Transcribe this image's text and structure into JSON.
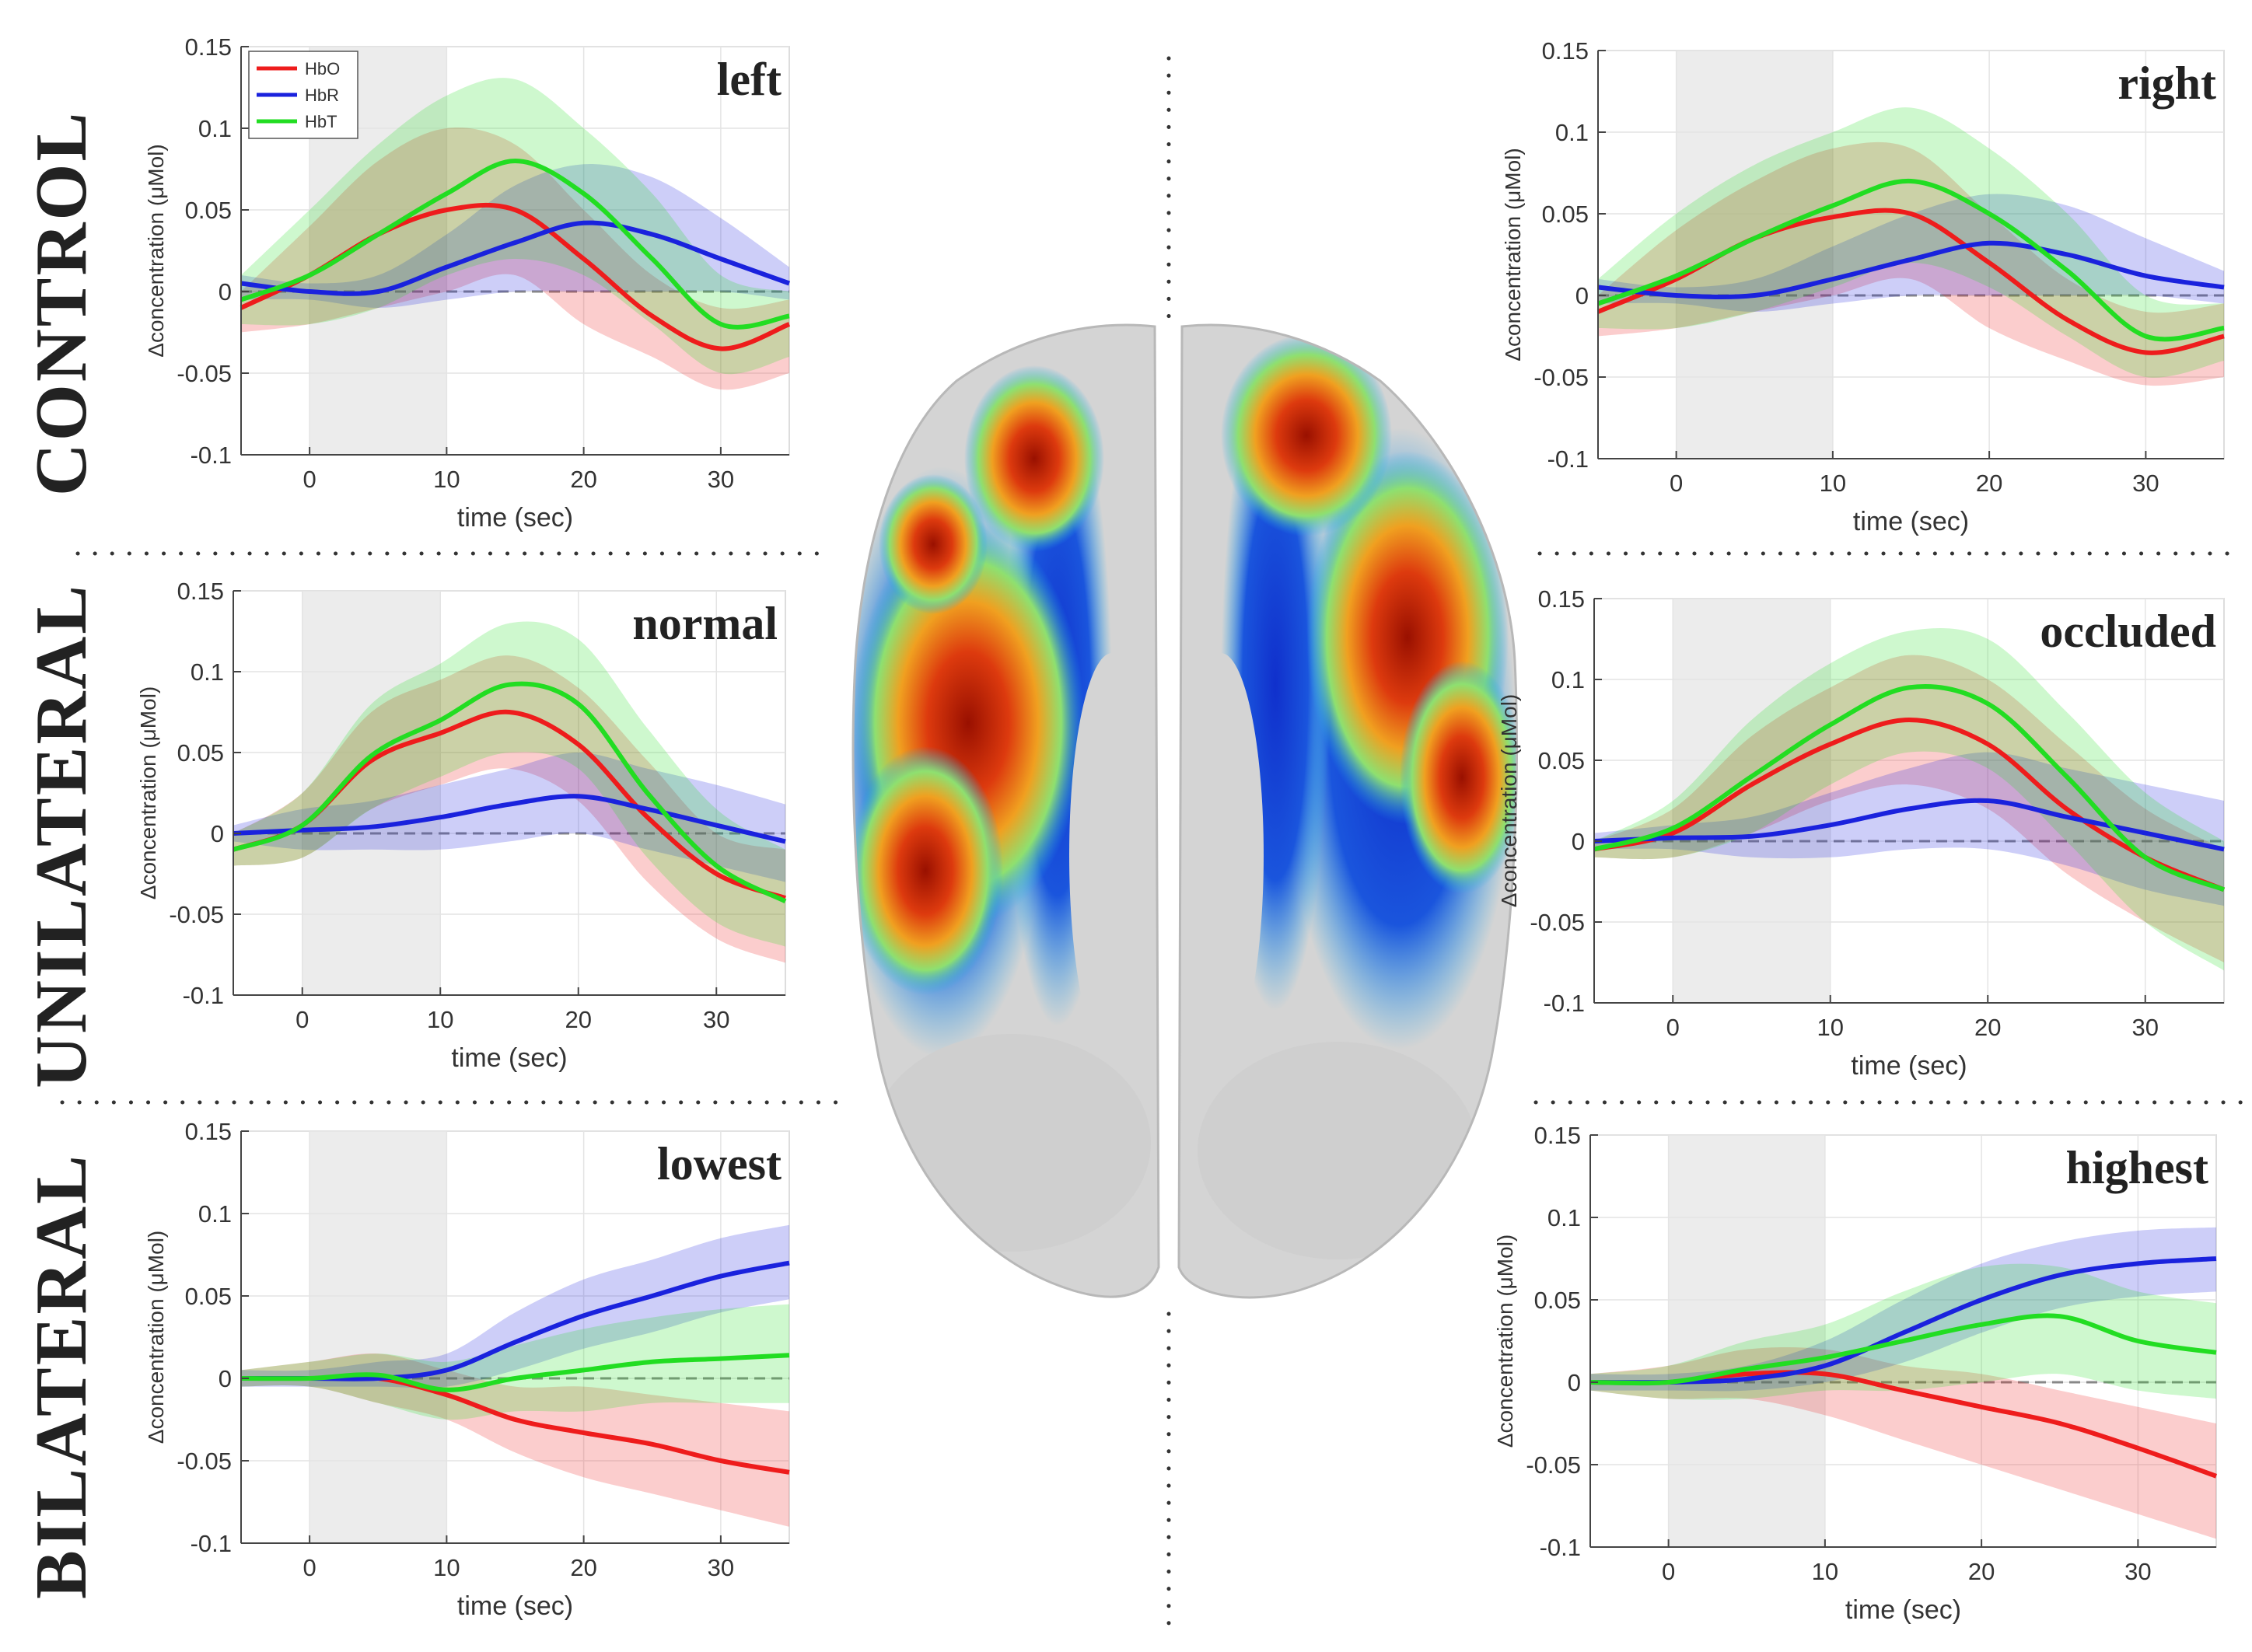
{
  "figure": {
    "row_labels": [
      "CONTROL",
      "UNILATERAL",
      "BILATERAL"
    ],
    "colors": {
      "HbO": "#ee1c1c",
      "HbR": "#1a22dd",
      "HbT": "#22dd22",
      "stim_shade": "#ececec",
      "zero_line": "#888888"
    },
    "brain": {
      "description_icon": "brain-activation-map-icon",
      "colormap": [
        "#1133cc",
        "#22aaee",
        "#66ee88",
        "#eedd22",
        "#ee5511",
        "#aa1100"
      ]
    }
  },
  "chart_data": [
    {
      "type": "line",
      "title": "left",
      "row": "CONTROL",
      "xlabel": "time (sec)",
      "ylabel": "Δconcentration (μMol)",
      "xlim": [
        -5,
        35
      ],
      "ylim": [
        -0.1,
        0.15
      ],
      "xticks": [
        0,
        10,
        20,
        30
      ],
      "yticks": [
        -0.1,
        -0.05,
        0,
        0.05,
        0.1,
        0.15
      ],
      "stim_window": [
        0,
        10
      ],
      "legend": [
        "HbO",
        "HbR",
        "HbT"
      ],
      "legend_position": "top-left",
      "x": [
        -5,
        0,
        5,
        10,
        15,
        20,
        25,
        30,
        35
      ],
      "series": [
        {
          "name": "HbO",
          "values": [
            -0.01,
            0.01,
            0.035,
            0.05,
            0.05,
            0.02,
            -0.015,
            -0.035,
            -0.02
          ],
          "upper": [
            0.0,
            0.04,
            0.08,
            0.1,
            0.09,
            0.05,
            0.01,
            -0.01,
            -0.005
          ],
          "lower": [
            -0.025,
            -0.02,
            -0.01,
            0.0,
            0.01,
            -0.02,
            -0.04,
            -0.06,
            -0.05
          ]
        },
        {
          "name": "HbR",
          "values": [
            0.005,
            0.0,
            0.0,
            0.015,
            0.03,
            0.042,
            0.035,
            0.02,
            0.005
          ],
          "upper": [
            0.01,
            0.005,
            0.01,
            0.035,
            0.065,
            0.078,
            0.07,
            0.045,
            0.015
          ],
          "lower": [
            -0.005,
            -0.005,
            -0.01,
            -0.005,
            0.0,
            0.0,
            0.0,
            0.0,
            -0.005
          ]
        },
        {
          "name": "HbT",
          "values": [
            -0.005,
            0.01,
            0.035,
            0.06,
            0.08,
            0.06,
            0.02,
            -0.02,
            -0.015
          ],
          "upper": [
            0.01,
            0.05,
            0.09,
            0.12,
            0.13,
            0.1,
            0.06,
            0.01,
            0.0
          ],
          "lower": [
            -0.02,
            -0.02,
            -0.01,
            0.01,
            0.02,
            0.01,
            -0.02,
            -0.05,
            -0.04
          ]
        }
      ]
    },
    {
      "type": "line",
      "title": "right",
      "row": "CONTROL",
      "xlabel": "time (sec)",
      "ylabel": "Δconcentration (μMol)",
      "xlim": [
        -5,
        35
      ],
      "ylim": [
        -0.1,
        0.15
      ],
      "xticks": [
        0,
        10,
        20,
        30
      ],
      "yticks": [
        -0.1,
        -0.05,
        0,
        0.05,
        0.1,
        0.15
      ],
      "stim_window": [
        0,
        10
      ],
      "legend": [],
      "legend_position": "none",
      "x": [
        -5,
        0,
        5,
        10,
        15,
        20,
        25,
        30,
        35
      ],
      "series": [
        {
          "name": "HbO",
          "values": [
            -0.01,
            0.01,
            0.035,
            0.048,
            0.05,
            0.02,
            -0.015,
            -0.035,
            -0.025
          ],
          "upper": [
            0.0,
            0.04,
            0.07,
            0.09,
            0.09,
            0.05,
            0.01,
            -0.01,
            -0.005
          ],
          "lower": [
            -0.025,
            -0.02,
            -0.01,
            0.0,
            0.01,
            -0.02,
            -0.04,
            -0.055,
            -0.05
          ]
        },
        {
          "name": "HbR",
          "values": [
            0.005,
            0.0,
            0.0,
            0.01,
            0.022,
            0.032,
            0.025,
            0.012,
            0.005
          ],
          "upper": [
            0.01,
            0.005,
            0.01,
            0.03,
            0.05,
            0.062,
            0.055,
            0.035,
            0.015
          ],
          "lower": [
            -0.005,
            -0.005,
            -0.01,
            -0.005,
            0.0,
            0.0,
            0.0,
            0.0,
            -0.005
          ]
        },
        {
          "name": "HbT",
          "values": [
            -0.005,
            0.012,
            0.035,
            0.055,
            0.07,
            0.05,
            0.015,
            -0.025,
            -0.02
          ],
          "upper": [
            0.01,
            0.05,
            0.08,
            0.1,
            0.115,
            0.09,
            0.05,
            0.0,
            -0.005
          ],
          "lower": [
            -0.02,
            -0.02,
            -0.01,
            0.005,
            0.02,
            0.005,
            -0.025,
            -0.05,
            -0.04
          ]
        }
      ]
    },
    {
      "type": "line",
      "title": "normal",
      "row": "UNILATERAL",
      "xlabel": "time (sec)",
      "ylabel": "Δconcentration (μMol)",
      "xlim": [
        -5,
        35
      ],
      "ylim": [
        -0.1,
        0.15
      ],
      "xticks": [
        0,
        10,
        20,
        30
      ],
      "yticks": [
        -0.1,
        -0.05,
        0,
        0.05,
        0.1,
        0.15
      ],
      "stim_window": [
        0,
        10
      ],
      "legend": [],
      "legend_position": "none",
      "x": [
        -5,
        0,
        5,
        10,
        15,
        20,
        25,
        30,
        35
      ],
      "series": [
        {
          "name": "HbO",
          "values": [
            -0.01,
            0.005,
            0.045,
            0.062,
            0.075,
            0.055,
            0.01,
            -0.025,
            -0.04
          ],
          "upper": [
            0.0,
            0.025,
            0.075,
            0.095,
            0.11,
            0.09,
            0.045,
            0.0,
            -0.01
          ],
          "lower": [
            -0.02,
            -0.015,
            0.015,
            0.03,
            0.04,
            0.02,
            -0.03,
            -0.065,
            -0.08
          ]
        },
        {
          "name": "HbR",
          "values": [
            0.0,
            0.002,
            0.004,
            0.01,
            0.018,
            0.023,
            0.015,
            0.005,
            -0.005
          ],
          "upper": [
            0.005,
            0.015,
            0.02,
            0.03,
            0.04,
            0.05,
            0.04,
            0.03,
            0.018
          ],
          "lower": [
            -0.005,
            -0.01,
            -0.01,
            -0.01,
            -0.005,
            0.0,
            -0.01,
            -0.02,
            -0.03
          ]
        },
        {
          "name": "HbT",
          "values": [
            -0.01,
            0.005,
            0.048,
            0.07,
            0.092,
            0.08,
            0.025,
            -0.02,
            -0.042
          ],
          "upper": [
            0.0,
            0.025,
            0.08,
            0.105,
            0.13,
            0.12,
            0.065,
            0.015,
            -0.01
          ],
          "lower": [
            -0.02,
            -0.015,
            0.015,
            0.035,
            0.05,
            0.04,
            -0.015,
            -0.055,
            -0.07
          ]
        }
      ]
    },
    {
      "type": "line",
      "title": "occluded",
      "row": "UNILATERAL",
      "xlabel": "time (sec)",
      "ylabel": "Δconcentration (μMol)",
      "xlim": [
        -5,
        35
      ],
      "ylim": [
        -0.1,
        0.15
      ],
      "xticks": [
        0,
        10,
        20,
        30
      ],
      "yticks": [
        -0.1,
        -0.05,
        0,
        0.05,
        0.1,
        0.15
      ],
      "stim_window": [
        0,
        10
      ],
      "legend": [],
      "legend_position": "none",
      "x": [
        -5,
        0,
        5,
        10,
        15,
        20,
        25,
        30,
        35
      ],
      "series": [
        {
          "name": "HbO",
          "values": [
            -0.005,
            0.005,
            0.035,
            0.06,
            0.075,
            0.06,
            0.02,
            -0.01,
            -0.03
          ],
          "upper": [
            0.0,
            0.02,
            0.065,
            0.095,
            0.115,
            0.1,
            0.06,
            0.02,
            -0.005
          ],
          "lower": [
            -0.01,
            -0.01,
            0.005,
            0.025,
            0.035,
            0.02,
            -0.02,
            -0.05,
            -0.075
          ]
        },
        {
          "name": "HbR",
          "values": [
            0.0,
            0.002,
            0.003,
            0.01,
            0.02,
            0.025,
            0.015,
            0.005,
            -0.005
          ],
          "upper": [
            0.005,
            0.01,
            0.015,
            0.03,
            0.045,
            0.055,
            0.045,
            0.035,
            0.025
          ],
          "lower": [
            -0.005,
            -0.005,
            -0.01,
            -0.01,
            -0.005,
            -0.005,
            -0.015,
            -0.03,
            -0.04
          ]
        },
        {
          "name": "HbT",
          "values": [
            -0.005,
            0.008,
            0.04,
            0.072,
            0.095,
            0.085,
            0.04,
            -0.01,
            -0.03
          ],
          "upper": [
            0.0,
            0.025,
            0.075,
            0.11,
            0.13,
            0.125,
            0.08,
            0.03,
            0.0
          ],
          "lower": [
            -0.01,
            -0.01,
            0.005,
            0.035,
            0.055,
            0.045,
            0.0,
            -0.05,
            -0.08
          ]
        }
      ]
    },
    {
      "type": "line",
      "title": "lowest",
      "row": "BILATERAL",
      "xlabel": "time (sec)",
      "ylabel": "Δconcentration (μMol)",
      "xlim": [
        -5,
        35
      ],
      "ylim": [
        -0.1,
        0.15
      ],
      "xticks": [
        0,
        10,
        20,
        30
      ],
      "yticks": [
        -0.1,
        -0.05,
        0,
        0.05,
        0.1,
        0.15
      ],
      "stim_window": [
        0,
        10
      ],
      "legend": [],
      "legend_position": "none",
      "x": [
        -5,
        0,
        5,
        10,
        15,
        20,
        25,
        30,
        35
      ],
      "series": [
        {
          "name": "HbO",
          "values": [
            0.0,
            0.0,
            0.0,
            -0.01,
            -0.025,
            -0.033,
            -0.04,
            -0.05,
            -0.057
          ],
          "upper": [
            0.005,
            0.01,
            0.015,
            0.005,
            -0.005,
            -0.005,
            -0.01,
            -0.015,
            -0.02
          ],
          "lower": [
            -0.005,
            -0.005,
            -0.015,
            -0.025,
            -0.045,
            -0.06,
            -0.07,
            -0.08,
            -0.09
          ]
        },
        {
          "name": "HbR",
          "values": [
            0.0,
            0.0,
            0.0,
            0.005,
            0.022,
            0.038,
            0.05,
            0.062,
            0.07
          ],
          "upper": [
            0.005,
            0.005,
            0.01,
            0.015,
            0.04,
            0.06,
            0.072,
            0.085,
            0.093
          ],
          "lower": [
            -0.005,
            -0.005,
            -0.005,
            -0.005,
            0.005,
            0.018,
            0.028,
            0.04,
            0.048
          ]
        },
        {
          "name": "HbT",
          "values": [
            0.0,
            0.0,
            0.002,
            -0.007,
            0.0,
            0.005,
            0.01,
            0.012,
            0.014
          ],
          "upper": [
            0.005,
            0.01,
            0.015,
            0.01,
            0.02,
            0.03,
            0.037,
            0.042,
            0.045
          ],
          "lower": [
            -0.005,
            -0.005,
            -0.015,
            -0.025,
            -0.02,
            -0.02,
            -0.015,
            -0.015,
            -0.015
          ]
        }
      ]
    },
    {
      "type": "line",
      "title": "highest",
      "row": "BILATERAL",
      "xlabel": "time (sec)",
      "ylabel": "Δconcentration (μMol)",
      "xlim": [
        -5,
        35
      ],
      "ylim": [
        -0.1,
        0.15
      ],
      "xticks": [
        0,
        10,
        20,
        30
      ],
      "yticks": [
        -0.1,
        -0.05,
        0,
        0.05,
        0.1,
        0.15
      ],
      "stim_window": [
        0,
        10
      ],
      "legend": [],
      "legend_position": "none",
      "x": [
        -5,
        0,
        5,
        10,
        15,
        20,
        25,
        30,
        35
      ],
      "series": [
        {
          "name": "HbO",
          "values": [
            0.0,
            0.0,
            0.005,
            0.005,
            -0.005,
            -0.015,
            -0.025,
            -0.04,
            -0.057
          ],
          "upper": [
            0.005,
            0.01,
            0.02,
            0.02,
            0.01,
            0.005,
            -0.005,
            -0.015,
            -0.025
          ],
          "lower": [
            -0.005,
            -0.01,
            -0.01,
            -0.02,
            -0.035,
            -0.05,
            -0.065,
            -0.08,
            -0.095
          ]
        },
        {
          "name": "HbR",
          "values": [
            0.0,
            0.0,
            0.002,
            0.01,
            0.03,
            0.05,
            0.065,
            0.072,
            0.075
          ],
          "upper": [
            0.005,
            0.005,
            0.01,
            0.025,
            0.05,
            0.072,
            0.085,
            0.092,
            0.094
          ],
          "lower": [
            -0.005,
            -0.005,
            -0.005,
            0.0,
            0.012,
            0.03,
            0.045,
            0.052,
            0.055
          ]
        },
        {
          "name": "HbT",
          "values": [
            0.0,
            0.0,
            0.008,
            0.015,
            0.025,
            0.035,
            0.04,
            0.025,
            0.018
          ],
          "upper": [
            0.005,
            0.01,
            0.025,
            0.035,
            0.055,
            0.07,
            0.07,
            0.055,
            0.048
          ],
          "lower": [
            -0.005,
            -0.01,
            -0.01,
            -0.005,
            -0.005,
            0.0,
            0.005,
            -0.005,
            -0.01
          ]
        }
      ]
    }
  ]
}
